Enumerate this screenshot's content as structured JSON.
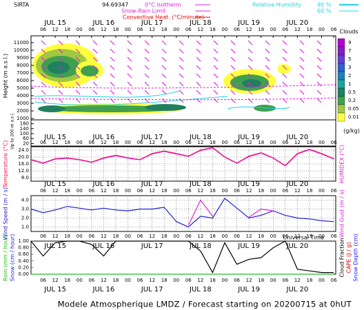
{
  "station": "SIRTA",
  "header_value": "94.69347",
  "isolines": [
    {
      "label": "0°C isotherm",
      "color": "#e020e0"
    },
    {
      "label": "Snow-Rain Limit",
      "color": "#e020e0"
    },
    {
      "label": "Convective Heat. (°C/minute)",
      "color": "#e00000"
    }
  ],
  "humidity": {
    "label": "Relative Humidity",
    "levels": [
      "90 %",
      "60 %"
    ],
    "color": "#20d0e0"
  },
  "footer": "Modele Atmospherique LMDZ / Forecast starting on 20200715 at 0hUT",
  "x_axis": {
    "label": "Universal Time",
    "xlim": [
      0,
      151
    ],
    "hour_ticks": [
      {
        "value": 6,
        "label": "06"
      },
      {
        "value": 12,
        "label": "12"
      },
      {
        "value": 18,
        "label": "18"
      },
      {
        "value": 24,
        "label": "00"
      },
      {
        "value": 30,
        "label": "06"
      },
      {
        "value": 36,
        "label": "12"
      },
      {
        "value": 42,
        "label": "18"
      },
      {
        "value": 48,
        "label": "00"
      },
      {
        "value": 54,
        "label": "06"
      },
      {
        "value": 60,
        "label": "12"
      },
      {
        "value": 66,
        "label": "18"
      },
      {
        "value": 72,
        "label": "00"
      },
      {
        "value": 78,
        "label": "06"
      },
      {
        "value": 84,
        "label": "12"
      },
      {
        "value": 90,
        "label": "18"
      },
      {
        "value": 96,
        "label": "00"
      },
      {
        "value": 102,
        "label": "06"
      },
      {
        "value": 108,
        "label": "12"
      },
      {
        "value": 114,
        "label": "18"
      },
      {
        "value": 120,
        "label": "00"
      },
      {
        "value": 126,
        "label": "06"
      },
      {
        "value": 132,
        "label": "12"
      },
      {
        "value": 138,
        "label": "18"
      },
      {
        "value": 144,
        "label": "00"
      },
      {
        "value": 150,
        "label": "06"
      }
    ],
    "day_ticks": [
      {
        "value": 12,
        "label": "JUL 15"
      },
      {
        "value": 36,
        "label": "JUL 16"
      },
      {
        "value": 60,
        "label": "JUL 17"
      },
      {
        "value": 84,
        "label": "JUL 18"
      },
      {
        "value": 108,
        "label": "JUL 19"
      },
      {
        "value": 132,
        "label": "JUL 20"
      }
    ]
  },
  "chart_data": [
    {
      "type": "contour",
      "y_label": "Height (m a.s.l.)",
      "ylim": [
        1000,
        11900
      ],
      "yticks": [
        11000,
        10000,
        9000,
        8000,
        7000,
        6000,
        5000,
        4000,
        3000,
        2000,
        1000
      ],
      "lower_label": "Up to 200 m a.s.l.",
      "lower_ylim": [
        0,
        200
      ],
      "lower_yticks": [
        180,
        140,
        100,
        60,
        20
      ],
      "legend": {
        "title": "Clouds",
        "levels": [
          9,
          7,
          5,
          3,
          2,
          1,
          0.5,
          0.2,
          0.05,
          0.01
        ],
        "colors": [
          "#b000d0",
          "#8020c0",
          "#6040d0",
          "#3060c8",
          "#2080b8",
          "#20a0a0",
          "#208060",
          "#40a050",
          "#a0c840",
          "#ffff40"
        ],
        "unit": "(g/kg)"
      }
    },
    {
      "type": "line",
      "ylim": [
        6,
        26
      ],
      "yticks": [
        {
          "value": 24,
          "label": "24.0"
        },
        {
          "value": 20,
          "label": "20.0"
        },
        {
          "value": 16,
          "label": "16.0"
        },
        {
          "value": 12,
          "label": "12.0"
        },
        {
          "value": 8,
          "label": "8.0"
        }
      ],
      "grid": true,
      "x": [
        0,
        6,
        12,
        18,
        24,
        30,
        36,
        42,
        48,
        54,
        60,
        66,
        72,
        78,
        84,
        90,
        96,
        102,
        108,
        114,
        120,
        126,
        132,
        138,
        144,
        150
      ],
      "series": [
        {
          "name": "Temperature (°C)",
          "color": "#ff1040",
          "side": "left",
          "values": [
            18.5,
            16.5,
            19,
            19.5,
            18.5,
            17,
            19.5,
            21,
            19.5,
            18.5,
            22,
            23.5,
            22,
            20.5,
            24,
            25.5,
            20,
            16.5,
            20.5,
            22.5,
            19.5,
            15,
            22,
            24.5,
            22,
            19
          ]
        },
        {
          "name": "HUMIDEX (°C)",
          "color": "#e020c0",
          "side": "right",
          "values": [
            18.3,
            16.4,
            18.8,
            19.3,
            18.4,
            16.9,
            19.3,
            20.8,
            19.4,
            18.4,
            21.8,
            23.3,
            21.8,
            20.4,
            23.8,
            25.3,
            19.9,
            16.4,
            20.3,
            22.3,
            19.4,
            14.9,
            21.8,
            24.3,
            21.8,
            18.9
          ]
        }
      ]
    },
    {
      "type": "line",
      "ylim": [
        0.5,
        4.5
      ],
      "yticks": [
        {
          "value": 4,
          "label": "4.0"
        },
        {
          "value": 3,
          "label": "3.0"
        },
        {
          "value": 2,
          "label": "2.0"
        },
        {
          "value": 1,
          "label": "1.0"
        }
      ],
      "grid": true,
      "x": [
        0,
        6,
        12,
        18,
        24,
        30,
        36,
        42,
        48,
        54,
        60,
        66,
        72,
        78,
        84,
        90,
        96,
        102,
        108,
        114,
        120,
        126,
        132,
        138,
        144,
        150
      ],
      "series": [
        {
          "name": "Wind Speed (m / s)",
          "color": "#2020d0",
          "side": "left",
          "values": [
            3.0,
            2.6,
            2.9,
            3.3,
            3.1,
            2.9,
            3.1,
            2.9,
            2.8,
            3.0,
            3.0,
            3.2,
            1.6,
            1.0,
            2.2,
            2.0,
            4.2,
            3.1,
            2.0,
            2.3,
            2.8,
            2.3,
            2.0,
            1.9,
            1.7,
            1.6
          ]
        },
        {
          "name": "Wind Gust (m / s)",
          "color": "#e020e0",
          "side": "right",
          "values": [
            null,
            null,
            null,
            null,
            null,
            null,
            null,
            null,
            null,
            null,
            null,
            null,
            null,
            1.2,
            4.0,
            2.2,
            null,
            null,
            2.1,
            3.0,
            2.8,
            null,
            null,
            null,
            null,
            null
          ]
        }
      ]
    },
    {
      "type": "line",
      "ylim": [
        0,
        1
      ],
      "yticks": [
        {
          "value": 1,
          "label": "1.00"
        },
        {
          "value": 0.8,
          "label": "0.80"
        },
        {
          "value": 0.6,
          "label": "0.60"
        },
        {
          "value": 0.4,
          "label": "0.40"
        },
        {
          "value": 0.2,
          "label": "0.20"
        },
        {
          "value": 0,
          "label": "0.00"
        }
      ],
      "grid": false,
      "x": [
        0,
        6,
        12,
        18,
        24,
        30,
        36,
        42,
        48,
        54,
        60,
        66,
        72,
        78,
        84,
        90,
        96,
        102,
        108,
        114,
        120,
        126,
        132,
        138,
        144,
        150
      ],
      "series": [
        {
          "name": "Rain (mm / hour)",
          "color": "#20c020",
          "side": "left",
          "values": [
            0,
            0,
            0,
            0,
            0,
            0,
            0,
            0,
            0,
            0,
            0,
            0,
            0,
            0,
            0,
            0,
            0,
            0,
            0,
            0,
            0,
            0,
            0,
            0,
            0,
            0
          ]
        },
        {
          "name": "Cloud Fraction",
          "color": "#000000",
          "side": "right",
          "values": [
            1.0,
            0.55,
            0.95,
            1.0,
            1.0,
            0.9,
            0.55,
            1.0,
            1.0,
            1.0,
            1.0,
            1.0,
            1.0,
            1.0,
            0.7,
            0.05,
            0.95,
            0.3,
            0.45,
            0.5,
            0.8,
            1.0,
            0.15,
            0.1,
            0.05,
            0.05
          ]
        }
      ],
      "extra_labels": [
        {
          "text": "Snow (cm / hour)",
          "color": "#2020ff",
          "side": "left"
        },
        {
          "text": "CAPE (J / g)",
          "color": "#e00000",
          "side": "right"
        },
        {
          "text": "Snow Depth (cm)",
          "color": "#2020ff",
          "side": "right"
        }
      ]
    }
  ]
}
